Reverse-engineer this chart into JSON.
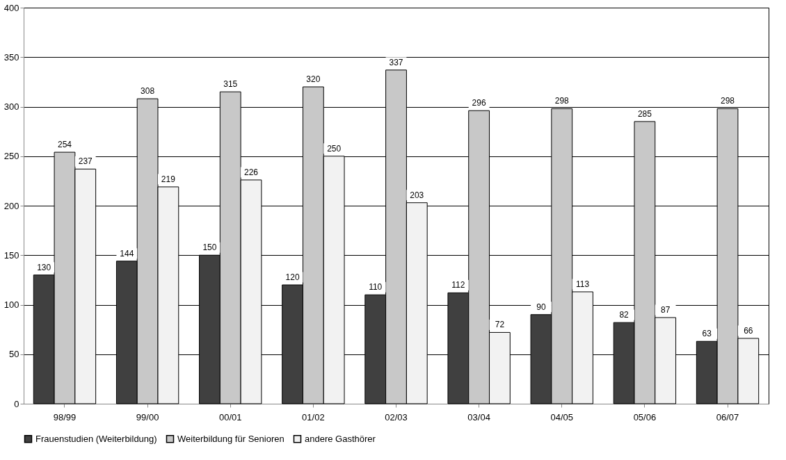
{
  "chart_data": {
    "type": "bar",
    "categories": [
      "98/99",
      "99/00",
      "00/01",
      "01/02",
      "02/03",
      "03/04",
      "04/05",
      "05/06",
      "06/07"
    ],
    "series": [
      {
        "name": "Frauenstudien (Weiterbildung)",
        "color": "#404040",
        "values": [
          130,
          144,
          150,
          120,
          110,
          112,
          90,
          82,
          63
        ]
      },
      {
        "name": "Weiterbildung für Senioren",
        "color": "#c8c8c8",
        "values": [
          254,
          308,
          315,
          320,
          337,
          296,
          298,
          285,
          298
        ]
      },
      {
        "name": "andere Gasthörer",
        "color": "#f2f2f2",
        "values": [
          237,
          219,
          226,
          250,
          203,
          72,
          113,
          87,
          66
        ]
      }
    ],
    "ylim": [
      0,
      400
    ],
    "yticks": [
      0,
      50,
      100,
      150,
      200,
      250,
      300,
      350,
      400
    ],
    "grid": "y",
    "legend": "bottom",
    "data_labels": true
  }
}
